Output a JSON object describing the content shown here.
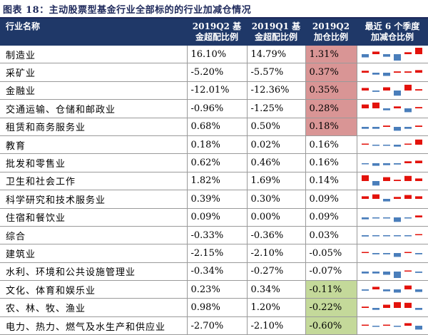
{
  "title": "图表 18：主动股票型基金行业全部标的的行业加减仓情况",
  "chart_data": {
    "type": "table",
    "columns": [
      {
        "line1": "行业名称",
        "line2": ""
      },
      {
        "line1": "2019Q2 基",
        "line2": "金超配比例"
      },
      {
        "line1": "2019Q1 基",
        "line2": "金超配比例"
      },
      {
        "line1": "2019Q2",
        "line2": "加仓比例"
      },
      {
        "line1": "最近 6 个季度",
        "line2": "加减仓比例"
      }
    ],
    "highlight_colors": {
      "positive": "#d99595",
      "negative": "#c4d99a",
      "spark_up": "#e3120b",
      "spark_down": "#4a7ebb"
    },
    "rows": [
      {
        "industry": "制造业",
        "q2": "16.10%",
        "q1": "14.79%",
        "change": "1.31%",
        "hl": "pos",
        "spark": [
          -0.5,
          0.4,
          -0.4,
          -1.0,
          0.3,
          1.0
        ]
      },
      {
        "industry": "采矿业",
        "q2": "-5.20%",
        "q1": "-5.57%",
        "change": "0.37%",
        "hl": "pos",
        "spark": [
          0.3,
          -0.3,
          -0.5,
          0.2,
          0.2,
          0.4
        ]
      },
      {
        "industry": "金融业",
        "q2": "-12.01%",
        "q1": "-12.36%",
        "change": "0.35%",
        "hl": "pos",
        "spark": [
          0.4,
          -0.2,
          0.5,
          -0.8,
          0.9,
          0.2
        ]
      },
      {
        "industry": "交通运输、仓储和邮政业",
        "q2": "-0.96%",
        "q1": "-1.25%",
        "change": "0.28%",
        "hl": "pos",
        "spark": [
          0.6,
          0.9,
          -0.3,
          0.3,
          -0.6,
          0.2
        ]
      },
      {
        "industry": "租赁和商务服务业",
        "q2": "0.68%",
        "q1": "0.50%",
        "change": "0.18%",
        "hl": "pos",
        "spark": [
          -0.3,
          -0.3,
          0.2,
          -0.6,
          -0.3,
          0.2
        ]
      },
      {
        "industry": "教育",
        "q2": "0.18%",
        "q1": "0.02%",
        "change": "0.16%",
        "hl": "",
        "spark": [
          0.05,
          -0.1,
          -0.15,
          -0.3,
          0.1,
          0.8
        ]
      },
      {
        "industry": "批发和零售业",
        "q2": "0.62%",
        "q1": "0.46%",
        "change": "0.16%",
        "hl": "",
        "spark": [
          -0.1,
          -0.4,
          -0.3,
          -0.2,
          0.3,
          0.4
        ]
      },
      {
        "industry": "卫生和社会工作",
        "q2": "1.82%",
        "q1": "1.69%",
        "change": "0.14%",
        "hl": "",
        "spark": [
          0.9,
          -0.7,
          0.6,
          0.2,
          0.8,
          0.4
        ]
      },
      {
        "industry": "科学研究和技术服务业",
        "q2": "0.39%",
        "q1": "0.30%",
        "change": "0.09%",
        "hl": "",
        "spark": [
          0.4,
          0.7,
          -0.4,
          0.3,
          0.6,
          0.4
        ]
      },
      {
        "industry": "住宿和餐饮业",
        "q2": "0.09%",
        "q1": "0.00%",
        "change": "0.09%",
        "hl": "",
        "spark": [
          -0.3,
          -0.1,
          -0.05,
          -0.7,
          -0.05,
          0.3
        ]
      },
      {
        "industry": "综合",
        "q2": "-0.33%",
        "q1": "-0.36%",
        "change": "0.03%",
        "hl": "",
        "spark": [
          -0.2,
          -0.05,
          -0.05,
          -0.05,
          -0.05,
          0.1
        ]
      },
      {
        "industry": "建筑业",
        "q2": "-2.15%",
        "q1": "-2.10%",
        "change": "-0.05%",
        "hl": "",
        "spark": [
          0.1,
          -0.2,
          -0.2,
          -0.6,
          0.1,
          -0.2
        ]
      },
      {
        "industry": "水利、环境和公共设施管理业",
        "q2": "-0.34%",
        "q1": "-0.27%",
        "change": "-0.07%",
        "hl": "",
        "spark": [
          -0.3,
          -0.3,
          -0.5,
          -1.0,
          0.1,
          -0.2
        ]
      },
      {
        "industry": "文化、体育和娱乐业",
        "q2": "0.23%",
        "q1": "0.34%",
        "change": "-0.11%",
        "hl": "neg",
        "spark": [
          -0.2,
          0.4,
          -0.3,
          -0.5,
          0.6,
          -0.4
        ]
      },
      {
        "industry": "农、林、牧、渔业",
        "q2": "0.98%",
        "q1": "1.20%",
        "change": "-0.22%",
        "hl": "neg",
        "spark": [
          0.2,
          -0.3,
          0.5,
          0.9,
          0.8,
          -0.3
        ]
      },
      {
        "industry": "电力、热力、燃气及水生产和供应业",
        "q2": "-2.70%",
        "q1": "-2.10%",
        "change": "-0.60%",
        "hl": "neg",
        "spark": [
          0.05,
          -0.1,
          0.05,
          -0.05,
          0.4,
          -0.6
        ]
      }
    ]
  }
}
